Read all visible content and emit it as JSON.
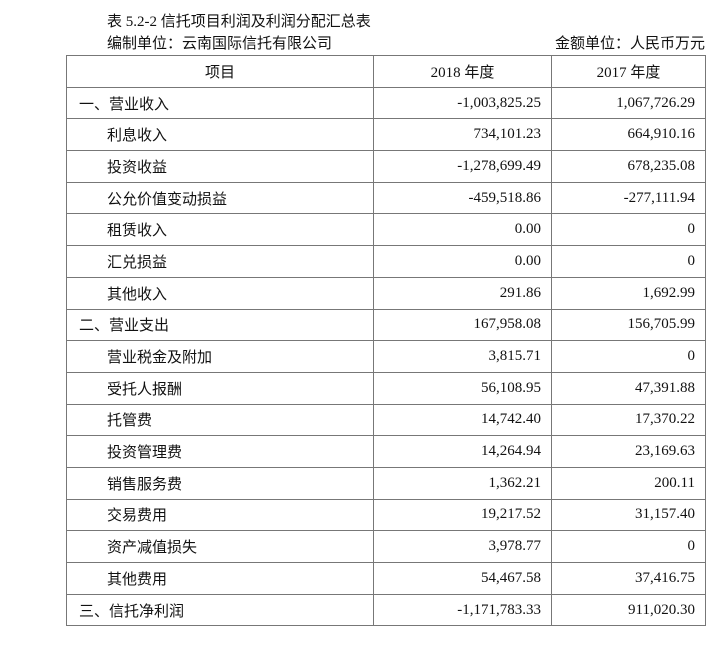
{
  "title": "表 5.2-2  信托项目利润及利润分配汇总表",
  "preparer": "编制单位：云南国际信托有限公司",
  "unit": "金额单位：人民币万元",
  "headers": [
    "项目",
    "2018 年度",
    "2017 年度"
  ],
  "rows": [
    {
      "item": "一、营业收入",
      "y2018": "-1,003,825.25",
      "y2017": "1,067,726.29",
      "level": 0
    },
    {
      "item": "利息收入",
      "y2018": "734,101.23",
      "y2017": "664,910.16",
      "level": 1
    },
    {
      "item": "投资收益",
      "y2018": "-1,278,699.49",
      "y2017": "678,235.08",
      "level": 1
    },
    {
      "item": "公允价值变动损益",
      "y2018": "-459,518.86",
      "y2017": "-277,111.94",
      "level": 1
    },
    {
      "item": "租赁收入",
      "y2018": "0.00",
      "y2017": "0",
      "level": 1
    },
    {
      "item": "汇兑损益",
      "y2018": "0.00",
      "y2017": "0",
      "level": 1
    },
    {
      "item": "其他收入",
      "y2018": "291.86",
      "y2017": "1,692.99",
      "level": 1
    },
    {
      "item": "二、营业支出",
      "y2018": "167,958.08",
      "y2017": "156,705.99",
      "level": 0
    },
    {
      "item": "营业税金及附加",
      "y2018": "3,815.71",
      "y2017": "0",
      "level": 1
    },
    {
      "item": "受托人报酬",
      "y2018": "56,108.95",
      "y2017": "47,391.88",
      "level": 1
    },
    {
      "item": "托管费",
      "y2018": "14,742.40",
      "y2017": "17,370.22",
      "level": 1
    },
    {
      "item": "投资管理费",
      "y2018": "14,264.94",
      "y2017": "23,169.63",
      "level": 1
    },
    {
      "item": "销售服务费",
      "y2018": "1,362.21",
      "y2017": "200.11",
      "level": 1
    },
    {
      "item": "交易费用",
      "y2018": "19,217.52",
      "y2017": "31,157.40",
      "level": 1
    },
    {
      "item": "资产减值损失",
      "y2018": "3,978.77",
      "y2017": "0",
      "level": 1
    },
    {
      "item": "其他费用",
      "y2018": "54,467.58",
      "y2017": "37,416.75",
      "level": 1
    },
    {
      "item": "三、信托净利润",
      "y2018": "-1,171,783.33",
      "y2017": "911,020.30",
      "level": 0
    }
  ]
}
